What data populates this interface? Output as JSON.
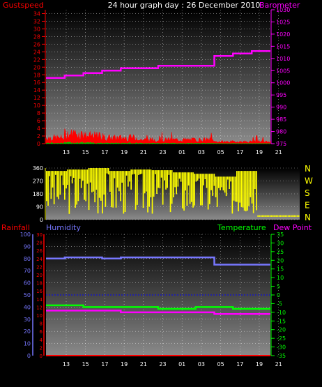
{
  "header": {
    "title": "24 hour graph day : 26 December 2010",
    "left_label": "Gustspeed",
    "right_label": "Barometer"
  },
  "colors": {
    "wind": "#ff0000",
    "wind_avg": "#00cc00",
    "barometer": "#ff00ff",
    "direction": "#ffff00",
    "rainfall": "#ff0000",
    "humidity": "#7777ff",
    "temperature": "#00ff00",
    "dewpoint": "#ff00ff",
    "grid": "#ffffff",
    "zero_line": "#0000ff"
  },
  "x_ticks": [
    "13",
    "15",
    "17",
    "19",
    "21",
    "23",
    "01",
    "03",
    "05",
    "17",
    "19",
    "21"
  ],
  "chart_data": [
    {
      "type": "line",
      "title": "24 hour graph day : 26 December 2010",
      "x": [
        "13",
        "15",
        "17",
        "19",
        "21",
        "23",
        "01",
        "03",
        "05",
        "17",
        "19",
        "21"
      ],
      "y_left": {
        "label": "Gustspeed",
        "ticks": [
          0,
          2,
          4,
          6,
          8,
          10,
          12,
          14,
          16,
          18,
          20,
          22,
          24,
          26,
          28,
          30,
          32,
          34
        ],
        "ylim": [
          0,
          35
        ]
      },
      "y_right": {
        "label": "Barometer",
        "ticks": [
          975,
          980,
          985,
          990,
          995,
          1000,
          1005,
          1010,
          1015,
          1020,
          1025,
          1030
        ],
        "ylim": [
          975,
          1030
        ]
      },
      "series": [
        {
          "name": "Barometer",
          "axis": "right",
          "values": [
            1002,
            1003,
            1004,
            1005,
            1006,
            1006,
            1007,
            1007,
            1007,
            1011,
            1012,
            1013
          ]
        },
        {
          "axis": "left",
          "values": [
            1.5,
            2.5,
            2.0,
            1.5,
            1.5,
            1.0,
            1.0,
            1.0,
            1.0,
            0.5,
            0.5,
            0.5
          ]
        }
      ]
    },
    {
      "type": "area",
      "x": [
        "13",
        "15",
        "17",
        "19",
        "21",
        "23",
        "01",
        "03",
        "05",
        "17",
        "19",
        "21"
      ],
      "y_left": {
        "ticks": [
          0,
          90,
          180,
          270,
          360
        ],
        "ylim": [
          0,
          360
        ]
      },
      "y_right": {
        "ticks": [
          "N",
          "W",
          "S",
          "E",
          "N"
        ]
      },
      "series": [
        {
          "axis": "left",
          "values": [
            340,
            350,
            360,
            340,
            350,
            345,
            330,
            320,
            300,
            340,
            30,
            30
          ]
        }
      ]
    },
    {
      "type": "line",
      "x": [
        "13",
        "15",
        "17",
        "19",
        "21",
        "23",
        "01",
        "03",
        "05",
        "17",
        "19",
        "21"
      ],
      "y_left_outer": {
        "label": "Humidity",
        "ticks": [
          0,
          10,
          20,
          30,
          40,
          50,
          60,
          70,
          80,
          90,
          100
        ],
        "ylim": [
          0,
          100
        ]
      },
      "y_left_inner": {
        "label": "Rainfall",
        "ticks": [
          0,
          2,
          4,
          6,
          8,
          10,
          12,
          14,
          16,
          18,
          20,
          22,
          24,
          26,
          28,
          30
        ],
        "ylim": [
          0,
          30
        ]
      },
      "y_right": {
        "label": "Temperature",
        "ticks": [
          35,
          30,
          25,
          20,
          15,
          10,
          5,
          0,
          -5,
          -10,
          -15,
          -20,
          -25,
          -30,
          -35
        ],
        "ylim": [
          -35,
          35
        ]
      },
      "dew_point_label": "Dew Point",
      "series": [
        {
          "name": "Humidity",
          "axis": "left_outer",
          "values": [
            80,
            81,
            81,
            80,
            81,
            81,
            81,
            81,
            81,
            75,
            75,
            75
          ]
        },
        {
          "name": "Temperature",
          "axis": "right",
          "values": [
            -6,
            -6,
            -7,
            -7,
            -7,
            -7,
            -8,
            -8,
            -7,
            -7,
            -8,
            -8
          ]
        },
        {
          "name": "Dew Point",
          "axis": "right",
          "values": [
            -9,
            -9,
            -9,
            -9,
            -10,
            -10,
            -10,
            -10,
            -10,
            -11,
            -11,
            -11
          ]
        },
        {
          "name": "Rainfall",
          "axis": "left_inner",
          "values": [
            0,
            0,
            0,
            0,
            0,
            0,
            0,
            0,
            0,
            0,
            0,
            0
          ]
        }
      ]
    }
  ]
}
